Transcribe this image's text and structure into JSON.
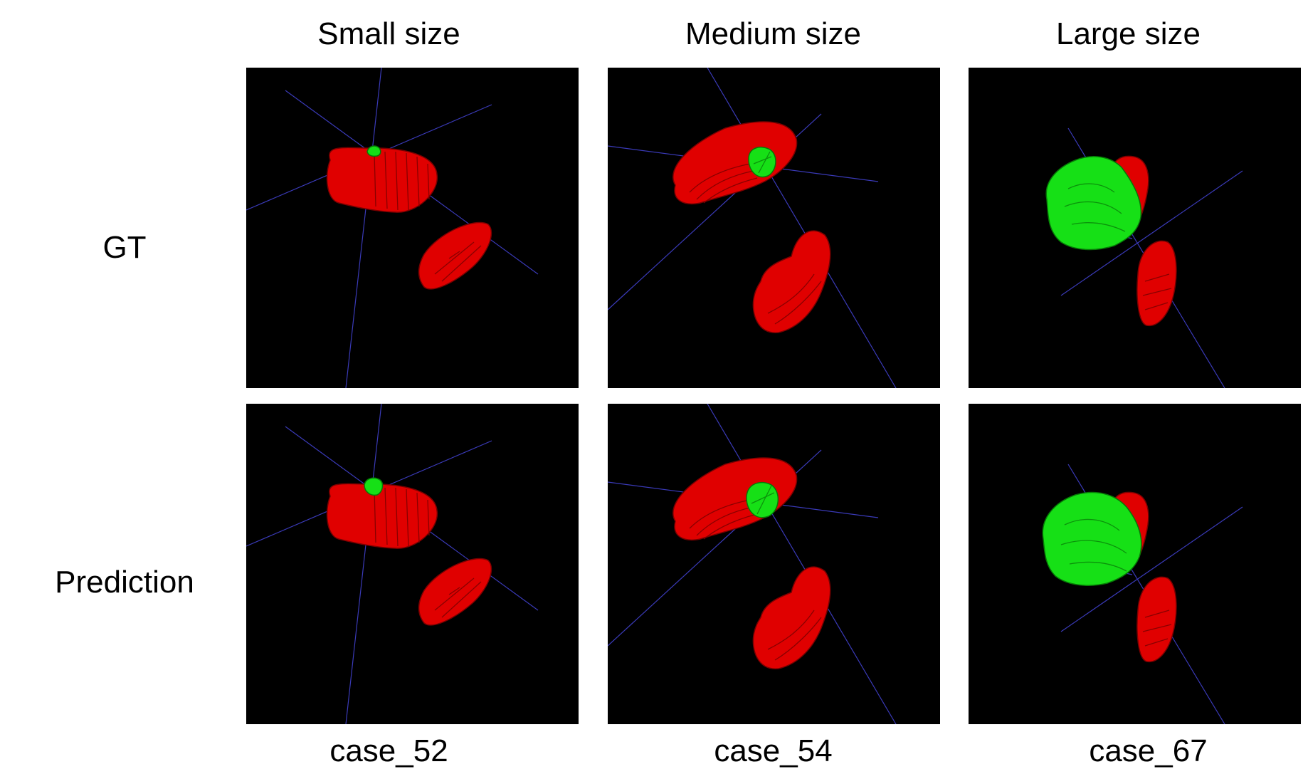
{
  "columns": [
    {
      "header": "Small size",
      "case": "case_52"
    },
    {
      "header": "Medium size",
      "case": "case_54"
    },
    {
      "header": "Large size",
      "case": "case_67"
    }
  ],
  "rows": [
    {
      "label": "GT"
    },
    {
      "label": "Prediction"
    }
  ],
  "colors": {
    "background": "#000000",
    "kidney": "#e00000",
    "tumor": "#16e016",
    "axis_lines": "#3a3ab8"
  }
}
